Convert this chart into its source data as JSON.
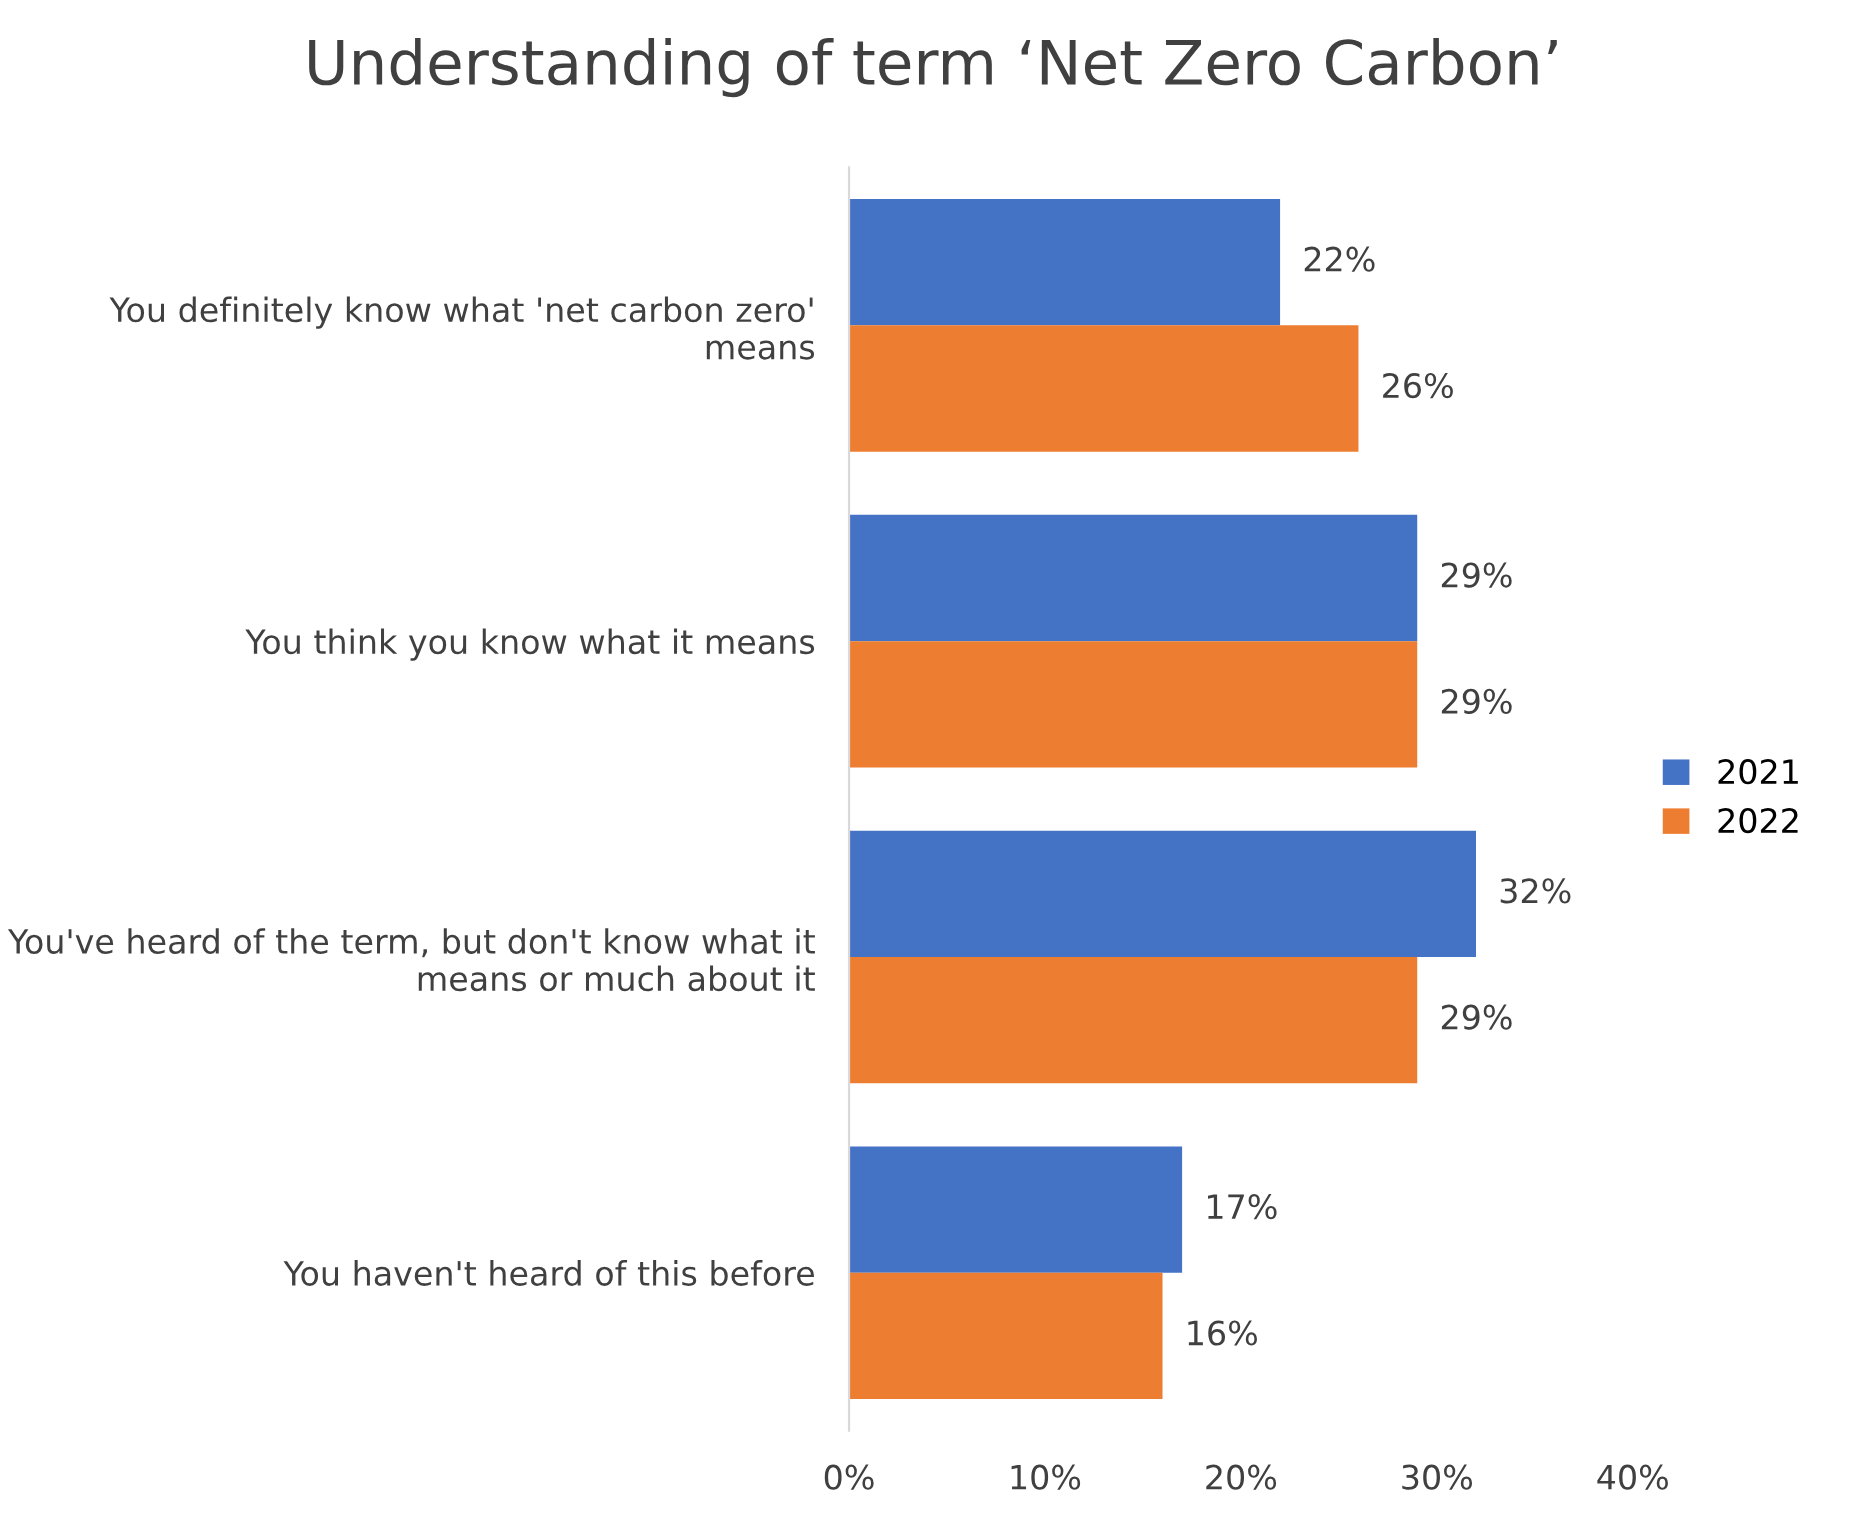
{
  "chart_data": {
    "type": "bar",
    "orientation": "horizontal",
    "title": "Understanding of term ‘Net Zero Carbon’",
    "categories": [
      "You definitely know what 'net carbon zero' means",
      "You think you know what it means",
      "You've heard of the term, but don't know what it means or much about it",
      "You haven't heard of this before"
    ],
    "series": [
      {
        "name": "2021",
        "color": "#4472c4",
        "values": [
          22,
          29,
          32,
          17
        ],
        "value_labels": [
          "22%",
          "29%",
          "32%",
          "17%"
        ]
      },
      {
        "name": "2022",
        "color": "#ed7d31",
        "values": [
          26,
          29,
          29,
          16
        ],
        "value_labels": [
          "26%",
          "29%",
          "29%",
          "16%"
        ]
      }
    ],
    "xlim": [
      0,
      40
    ],
    "xticks": [
      {
        "value": 0,
        "label": "0%"
      },
      {
        "value": 10,
        "label": "10%"
      },
      {
        "value": 20,
        "label": "20%"
      },
      {
        "value": 30,
        "label": "30%"
      },
      {
        "value": 40,
        "label": "40%"
      }
    ],
    "grid": false,
    "legend": "right"
  }
}
